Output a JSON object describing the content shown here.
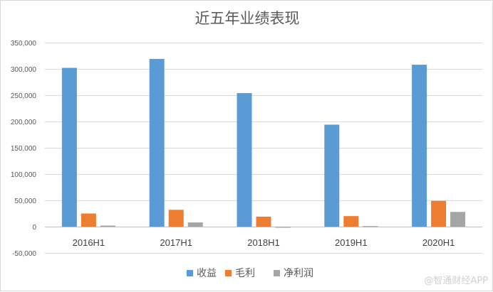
{
  "chart_data": {
    "type": "bar",
    "title": "近五年业绩表现",
    "categories": [
      "2016H1",
      "2017H1",
      "2018H1",
      "2019H1",
      "2020H1"
    ],
    "series": [
      {
        "name": "收益",
        "color": "#5b9bd5",
        "values": [
          302000,
          319000,
          254000,
          194000,
          308000
        ]
      },
      {
        "name": "毛利",
        "color": "#ed7d31",
        "values": [
          25000,
          32000,
          19000,
          20000,
          49000
        ]
      },
      {
        "name": "净利润",
        "color": "#a5a5a5",
        "values": [
          2000,
          8000,
          -2000,
          1000,
          28000
        ]
      }
    ],
    "ylim": [
      -50000,
      350000
    ],
    "yticks": [
      350000,
      300000,
      250000,
      200000,
      150000,
      100000,
      50000,
      0,
      -50000
    ],
    "ytick_labels": [
      "350,000",
      "300,000",
      "250,000",
      "200,000",
      "150,000",
      "100,000",
      "50,000",
      "0",
      "-50,000"
    ],
    "grid": true,
    "legend": "bottom"
  },
  "watermark": "@智通财经APP"
}
